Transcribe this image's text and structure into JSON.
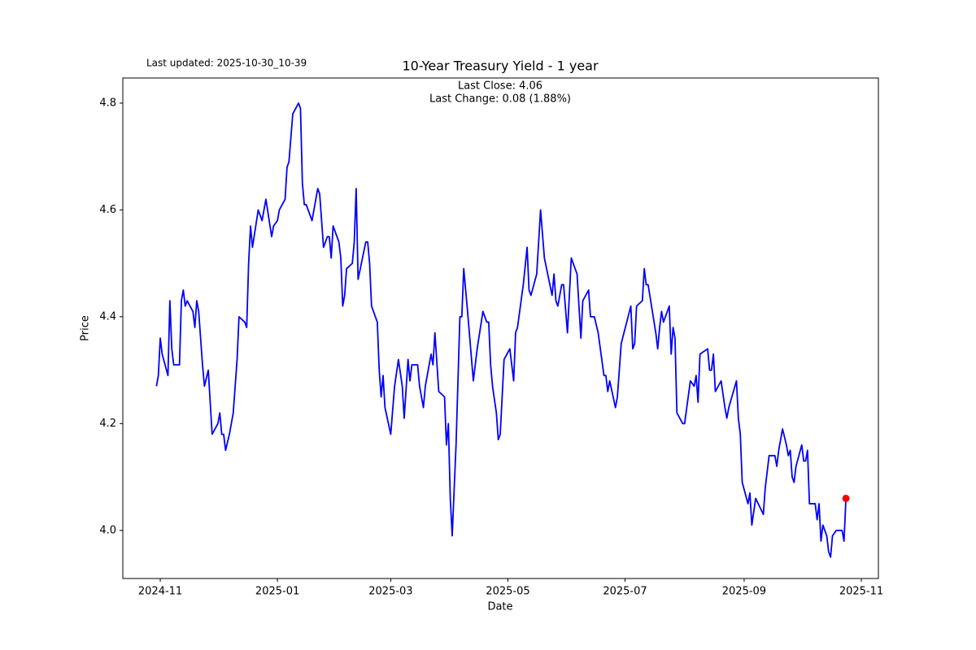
{
  "chart_data": {
    "type": "line",
    "title": "10-Year Treasury Yield - 1 year",
    "annotations": [
      "Last Close: 4.06",
      "Last Change: 0.08 (1.88%)"
    ],
    "updated": "Last updated: 2025-10-30_10-39",
    "xlabel": "Date",
    "ylabel": "Price",
    "color": "#0000ff",
    "last_marker_color": "#ff0000",
    "xlim": [
      -17.5,
      375.9
    ],
    "xticks": [
      {
        "value": 2,
        "label": "2024-11"
      },
      {
        "value": 63,
        "label": "2025-01"
      },
      {
        "value": 122,
        "label": "2025-03"
      },
      {
        "value": 183,
        "label": "2025-05"
      },
      {
        "value": 244,
        "label": "2025-07"
      },
      {
        "value": 306,
        "label": "2025-09"
      },
      {
        "value": 367,
        "label": "2025-11"
      }
    ],
    "ylim": [
      3.91,
      4.847
    ],
    "yticks": [
      {
        "value": 4,
        "label": "4.0"
      },
      4.2,
      4.4,
      4.6,
      4.8
    ],
    "x": [
      0,
      1,
      2,
      3,
      6,
      7,
      8,
      9,
      12,
      13,
      14,
      15,
      16,
      19,
      20,
      21,
      22,
      24,
      25,
      27,
      28,
      29,
      32,
      33,
      34,
      35,
      36,
      38,
      40,
      42,
      43,
      46,
      47,
      48,
      49,
      50,
      53,
      55,
      57,
      60,
      61,
      63,
      64,
      67,
      68,
      69,
      71,
      74,
      75,
      76,
      77,
      78,
      81,
      84,
      85,
      87,
      89,
      90,
      91,
      92,
      95,
      96,
      97,
      98,
      99,
      102,
      103,
      104,
      105,
      109,
      110,
      111,
      112,
      115,
      116,
      117,
      118,
      119,
      122,
      124,
      126,
      128,
      129,
      131,
      132,
      133,
      136,
      137,
      139,
      140,
      143,
      144,
      145,
      147,
      150,
      151,
      152,
      153,
      154,
      156,
      158,
      159,
      160,
      162,
      165,
      167,
      170,
      172,
      173,
      174,
      175,
      177,
      178,
      179,
      181,
      184,
      186,
      187,
      188,
      191,
      193,
      194,
      195,
      198,
      200,
      202,
      206,
      207,
      208,
      209,
      211,
      212,
      214,
      216,
      219,
      221,
      222,
      225,
      226,
      228,
      230,
      233,
      234,
      235,
      236,
      239,
      240,
      242,
      247,
      248,
      249,
      250,
      253,
      254,
      255,
      256,
      260,
      261,
      262,
      263,
      264,
      267,
      268,
      269,
      270,
      271,
      274,
      275,
      278,
      280,
      281,
      282,
      283,
      287,
      288,
      289,
      290,
      291,
      294,
      296,
      297,
      298,
      302,
      303,
      304,
      305,
      308,
      309,
      310,
      312,
      316,
      317,
      319,
      322,
      323,
      324,
      326,
      328,
      329,
      330,
      331,
      332,
      333,
      336,
      337,
      338,
      339,
      340,
      343,
      344,
      345,
      346,
      347,
      349,
      350,
      351,
      352,
      354,
      357,
      358,
      359
    ],
    "values": [
      4.27,
      4.29,
      4.36,
      4.33,
      4.29,
      4.43,
      4.34,
      4.31,
      4.31,
      4.43,
      4.45,
      4.42,
      4.43,
      4.41,
      4.38,
      4.43,
      4.41,
      4.31,
      4.27,
      4.3,
      4.24,
      4.18,
      4.2,
      4.22,
      4.18,
      4.18,
      4.15,
      4.18,
      4.22,
      4.32,
      4.4,
      4.39,
      4.38,
      4.5,
      4.57,
      4.53,
      4.6,
      4.58,
      4.62,
      4.55,
      4.57,
      4.58,
      4.6,
      4.62,
      4.68,
      4.69,
      4.78,
      4.8,
      4.79,
      4.65,
      4.61,
      4.61,
      4.58,
      4.64,
      4.63,
      4.53,
      4.55,
      4.55,
      4.51,
      4.57,
      4.54,
      4.51,
      4.42,
      4.44,
      4.49,
      4.5,
      4.54,
      4.64,
      4.47,
      4.54,
      4.54,
      4.5,
      4.42,
      4.39,
      4.3,
      4.25,
      4.29,
      4.23,
      4.18,
      4.27,
      4.32,
      4.27,
      4.21,
      4.32,
      4.28,
      4.31,
      4.31,
      4.27,
      4.23,
      4.27,
      4.33,
      4.31,
      4.37,
      4.26,
      4.25,
      4.16,
      4.2,
      4.06,
      3.99,
      4.16,
      4.4,
      4.4,
      4.49,
      4.41,
      4.28,
      4.34,
      4.41,
      4.39,
      4.39,
      4.31,
      4.27,
      4.22,
      4.17,
      4.18,
      4.32,
      4.34,
      4.28,
      4.37,
      4.38,
      4.46,
      4.53,
      4.45,
      4.44,
      4.48,
      4.6,
      4.51,
      4.44,
      4.48,
      4.43,
      4.42,
      4.46,
      4.46,
      4.37,
      4.51,
      4.48,
      4.36,
      4.43,
      4.45,
      4.4,
      4.4,
      4.37,
      4.29,
      4.29,
      4.26,
      4.28,
      4.23,
      4.25,
      4.35,
      4.42,
      4.34,
      4.35,
      4.42,
      4.43,
      4.49,
      4.46,
      4.46,
      4.37,
      4.34,
      4.38,
      4.41,
      4.39,
      4.42,
      4.33,
      4.38,
      4.36,
      4.22,
      4.2,
      4.2,
      4.28,
      4.27,
      4.29,
      4.24,
      4.33,
      4.34,
      4.3,
      4.3,
      4.33,
      4.26,
      4.28,
      4.23,
      4.21,
      4.23,
      4.28,
      4.21,
      4.18,
      4.09,
      4.05,
      4.07,
      4.01,
      4.06,
      4.03,
      4.08,
      4.14,
      4.14,
      4.12,
      4.15,
      4.19,
      4.16,
      4.14,
      4.15,
      4.1,
      4.09,
      4.12,
      4.16,
      4.13,
      4.13,
      4.15,
      4.05,
      4.05,
      4.02,
      4.05,
      3.98,
      4.01,
      3.99,
      3.96,
      3.95,
      3.99,
      4.0,
      4.0,
      3.98,
      4.06
    ]
  }
}
